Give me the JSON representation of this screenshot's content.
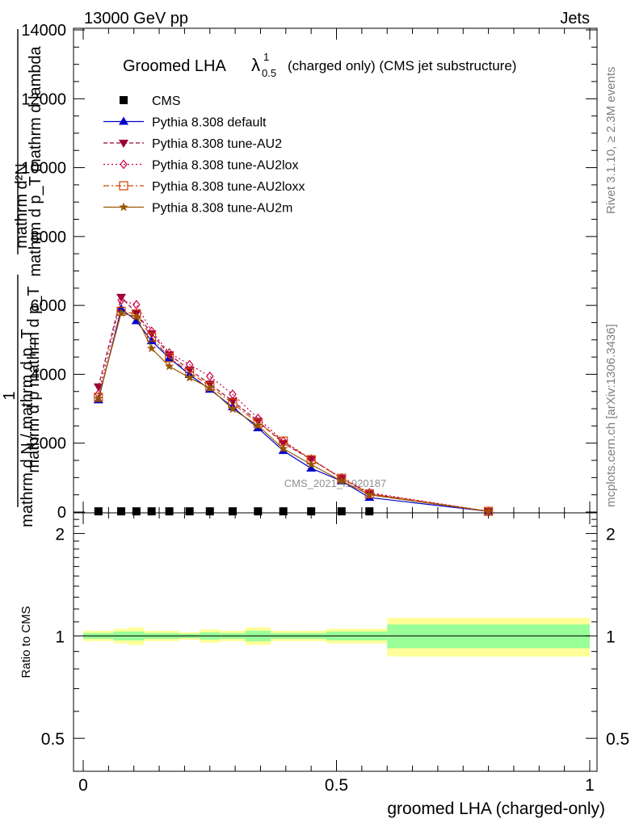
{
  "header": {
    "left": "13000 GeV pp",
    "right": "Jets"
  },
  "side_labels": {
    "rivet": "Rivet 3.1.10, ≥ 2.3M events",
    "mcplots": "mcplots.cern.ch [arXiv:1306.3436]"
  },
  "watermark": "CMS_2021_I1920187",
  "chart_data": [
    {
      "type": "line",
      "title": "Groomed LHA",
      "title_symbol": "λ",
      "title_sup": "1",
      "title_sub": "0.5",
      "title_suffix": "(charged only) (CMS jet substructure)",
      "ylabel_lines": [
        "mathrm d²N",
        "mathrm d p_T mathrm d lambda",
        "1",
        "mathrm d N / mathrm d p_T"
      ],
      "ylabel_subtitle": "mathrm d p mathrm d p_T",
      "ylim": [
        0,
        14000
      ],
      "yticks": [
        0,
        2000,
        4000,
        6000,
        8000,
        10000,
        12000,
        14000
      ],
      "ytick_labels": [
        "0",
        "2000",
        "4000",
        "6000",
        "8000",
        "10000",
        "12000",
        "14000"
      ],
      "xlim": [
        0,
        1
      ],
      "legend_position": "top-left",
      "x": [
        0.03,
        0.075,
        0.105,
        0.135,
        0.17,
        0.21,
        0.25,
        0.295,
        0.345,
        0.395,
        0.45,
        0.51,
        0.565,
        0.8
      ],
      "series": [
        {
          "name": "CMS",
          "color": "#000000",
          "marker": "square",
          "line": "none",
          "values": [
            20,
            20,
            20,
            20,
            20,
            20,
            20,
            20,
            20,
            20,
            20,
            20,
            20,
            null
          ]
        },
        {
          "name": "Pythia 8.308 default",
          "color": "#0000cc",
          "marker": "triangle-up",
          "line": "solid",
          "values": [
            3250,
            5900,
            5550,
            4970,
            4470,
            3990,
            3560,
            3050,
            2440,
            1780,
            1270,
            900,
            420,
            20
          ]
        },
        {
          "name": "Pythia 8.308 tune-AU2",
          "color": "#990033",
          "marker": "triangle-down",
          "line": "dashed",
          "values": [
            3640,
            6240,
            5780,
            5180,
            4570,
            4130,
            3720,
            3220,
            2640,
            2000,
            1530,
            980,
            530,
            20
          ]
        },
        {
          "name": "Pythia 8.308 tune-AU2lox",
          "color": "#cc0044",
          "marker": "diamond-open",
          "line": "dotted",
          "values": [
            3430,
            6150,
            6020,
            5250,
            4620,
            4280,
            3940,
            3420,
            2720,
            2060,
            1540,
            990,
            560,
            20
          ]
        },
        {
          "name": "Pythia 8.308 tune-AU2loxx",
          "color": "#cc4400",
          "marker": "square-open",
          "line": "dashdot",
          "values": [
            3330,
            5830,
            5750,
            5080,
            4480,
            4060,
            3650,
            3160,
            2580,
            2060,
            1520,
            980,
            530,
            20
          ]
        },
        {
          "name": "Pythia 8.308 tune-AU2m",
          "color": "#995500",
          "marker": "star",
          "line": "solid",
          "values": [
            3300,
            5780,
            5670,
            4750,
            4230,
            3900,
            3600,
            2990,
            2510,
            1840,
            1380,
            900,
            500,
            20
          ]
        }
      ]
    },
    {
      "type": "area",
      "ylabel": "Ratio to CMS",
      "xlabel": "groomed LHA (charged-only)",
      "xlim": [
        0,
        1
      ],
      "ylim": [
        0.4,
        2.3
      ],
      "log_y": true,
      "yticks": [
        0.5,
        1,
        2
      ],
      "ytick_labels": [
        "0.5",
        "1",
        "2"
      ],
      "xticks": [
        0,
        0.5,
        1
      ],
      "xtick_labels": [
        "0",
        "0.5",
        "1"
      ],
      "reference": 1,
      "bin_edges": [
        0,
        0.06,
        0.09,
        0.12,
        0.15,
        0.19,
        0.23,
        0.27,
        0.32,
        0.37,
        0.42,
        0.48,
        0.54,
        0.6,
        1.0
      ],
      "inner_band_half": [
        0.02,
        0.03,
        0.03,
        0.02,
        0.02,
        0.015,
        0.025,
        0.02,
        0.035,
        0.02,
        0.02,
        0.03,
        0.03,
        0.08
      ],
      "outer_band_half": [
        0.035,
        0.05,
        0.06,
        0.035,
        0.035,
        0.025,
        0.045,
        0.035,
        0.06,
        0.035,
        0.035,
        0.05,
        0.05,
        0.13
      ],
      "colors": {
        "inner": "#99ff99",
        "outer": "#ffff99",
        "line": "#000000"
      }
    }
  ]
}
